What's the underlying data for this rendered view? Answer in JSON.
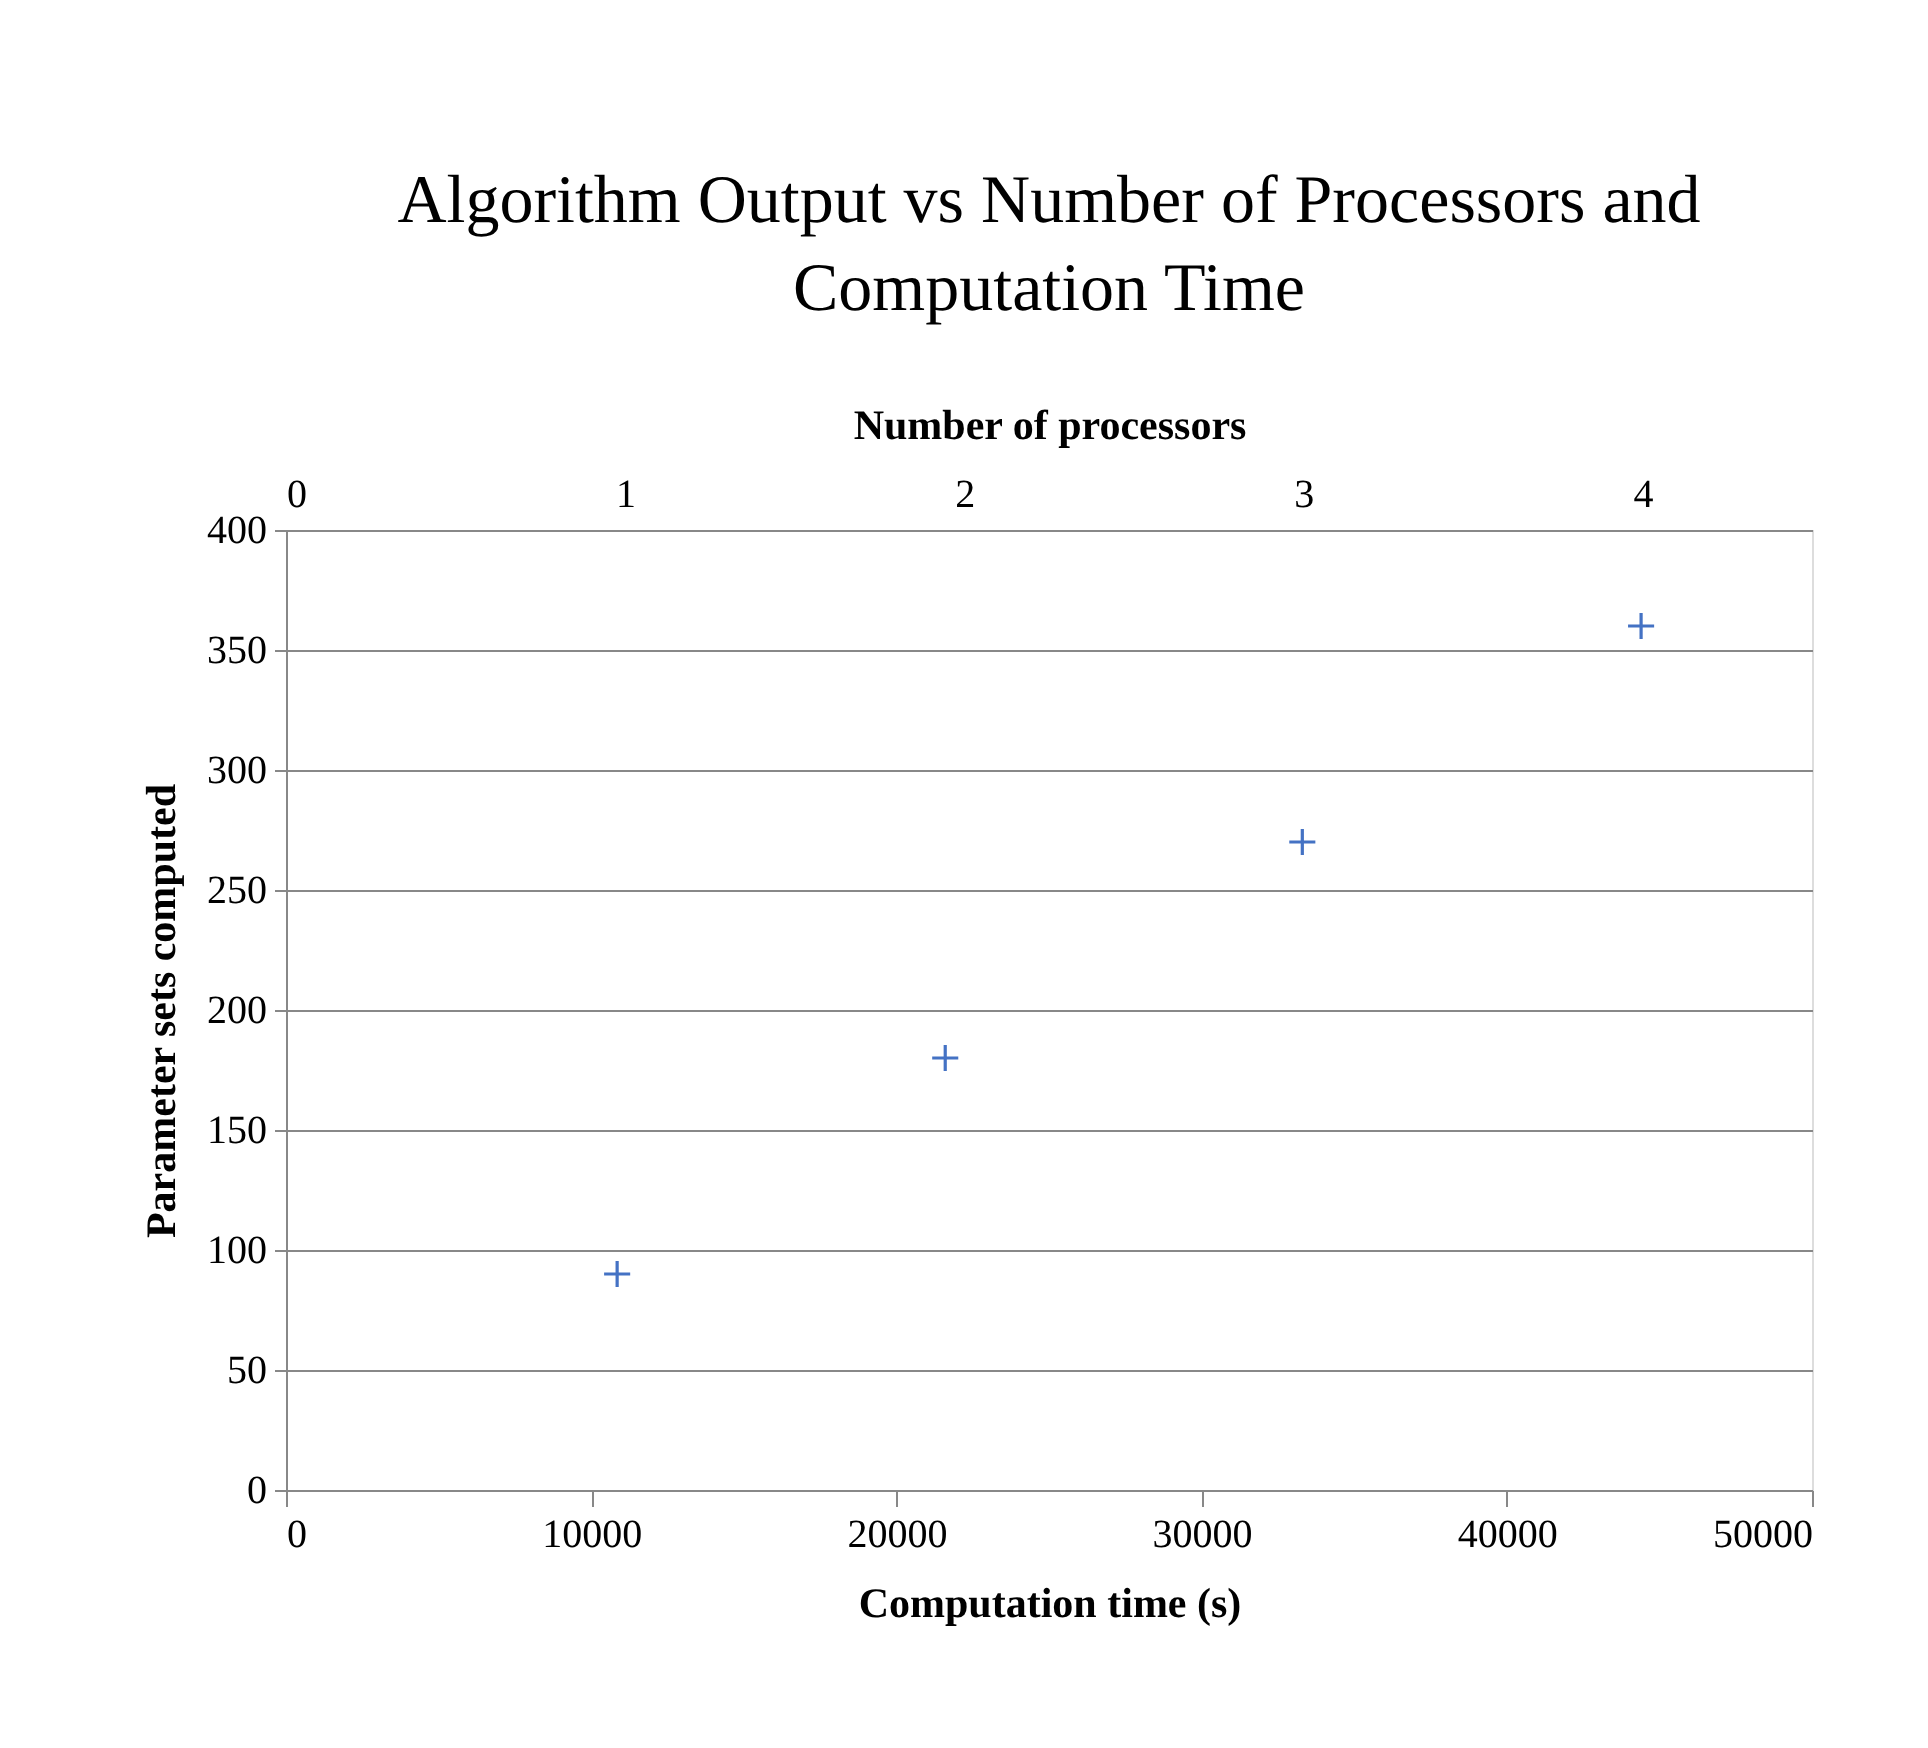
{
  "chart_data": {
    "type": "scatter",
    "title": [
      "Algorithm Output vs Number of Processors and",
      "Computation Time"
    ],
    "xlabel": "Computation time (s)",
    "ylabel": "Parameter sets computed",
    "x2label": "Number of processors",
    "x": [
      10850,
      21600,
      33300,
      44400
    ],
    "series": [
      {
        "color": "#4472c4",
        "values": [
          90,
          180,
          270,
          360
        ]
      }
    ],
    "xlim": [
      0,
      50000
    ],
    "xticks": [
      0,
      10000,
      20000,
      30000,
      40000,
      50000
    ],
    "ylim": [
      0,
      400
    ],
    "yticks": [
      0,
      50,
      100,
      150,
      200,
      250,
      300,
      350,
      400
    ],
    "x2lim": [
      0,
      4.5
    ],
    "x2ticks": [
      0,
      1,
      2,
      3,
      4
    ],
    "grid": "y",
    "marker": "cross"
  }
}
